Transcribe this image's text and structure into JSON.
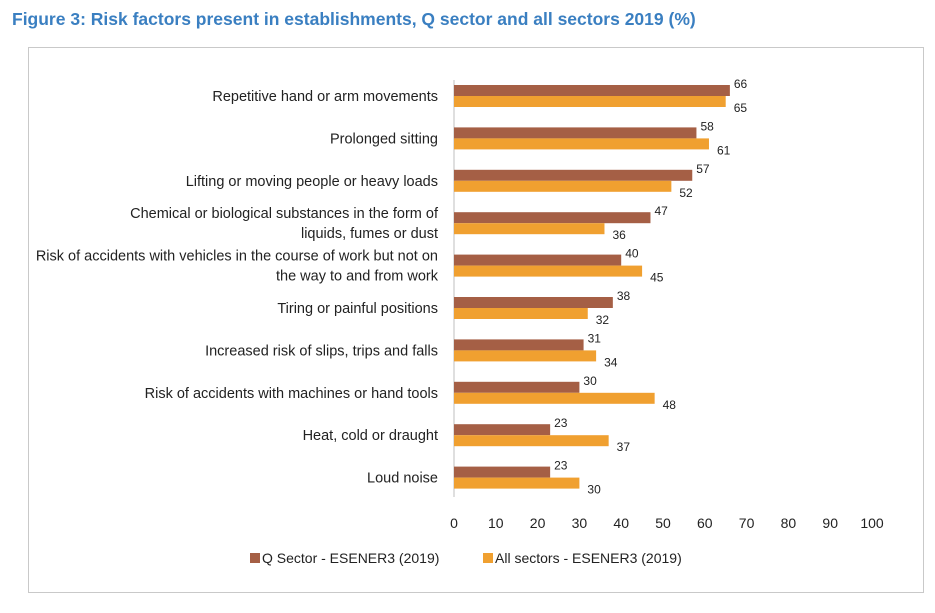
{
  "figure_title": "Figure 3: Risk factors present in establishments, Q sector and all sectors 2019 (%)",
  "colors": {
    "q_sector": "#a55f45",
    "all_sectors": "#f0a030",
    "title": "#3a7fc1"
  },
  "chart_data": {
    "type": "bar",
    "orientation": "horizontal",
    "title": "",
    "xlabel": "",
    "ylabel": "",
    "xlim": [
      0,
      100
    ],
    "xticks": [
      0,
      10,
      20,
      30,
      40,
      50,
      60,
      70,
      80,
      90,
      100
    ],
    "grid": false,
    "legend_position": "bottom",
    "categories": [
      [
        "Repetitive hand or arm movements"
      ],
      [
        "Prolonged sitting"
      ],
      [
        "Lifting or moving people or heavy loads"
      ],
      [
        "Chemical or biological substances in the form of",
        "liquids, fumes or dust"
      ],
      [
        "Risk of accidents with vehicles in the course of work but not on",
        "the way to and from work"
      ],
      [
        "Tiring or painful positions"
      ],
      [
        "Increased risk of slips, trips and falls"
      ],
      [
        "Risk of accidents with machines or hand tools"
      ],
      [
        "Heat, cold or draught"
      ],
      [
        "Loud noise"
      ]
    ],
    "series": [
      {
        "name": "Q Sector - ESENER3 (2019)",
        "color": "#a55f45",
        "values": [
          66,
          58,
          57,
          47,
          40,
          38,
          31,
          30,
          23,
          23
        ]
      },
      {
        "name": "All sectors - ESENER3 (2019)",
        "color": "#f0a030",
        "values": [
          65,
          61,
          52,
          36,
          45,
          32,
          34,
          48,
          37,
          30
        ]
      }
    ]
  }
}
